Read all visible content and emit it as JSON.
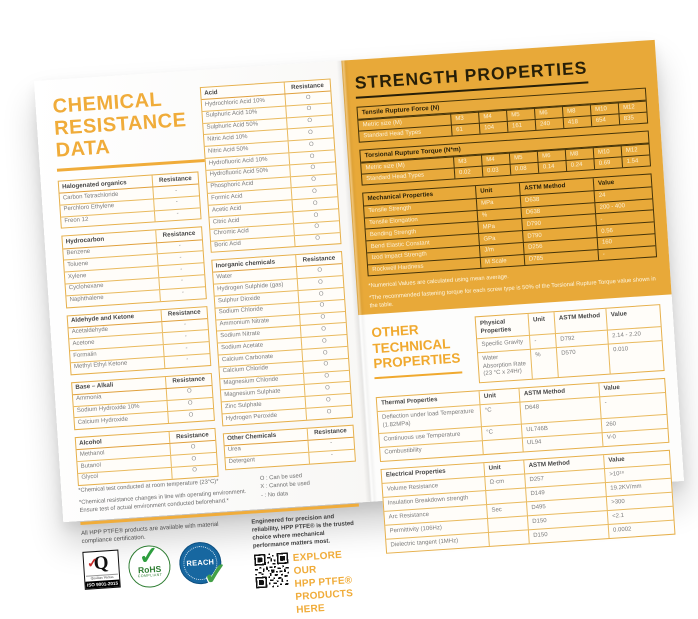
{
  "colors": {
    "gold": "#F0AC3A",
    "panel_gold": "#E8A939",
    "panel_border": "#453409",
    "table_border": "#E6B04C",
    "ink": "#271f08"
  },
  "left_page": {
    "title_lines": [
      "CHEMICAL",
      "RESISTANCE",
      "DATA"
    ],
    "resistance_header": "Resistance",
    "tables": {
      "halogenated": {
        "category": "Halogenated organics",
        "rows": [
          [
            "Carbon Tetrachloride",
            "-"
          ],
          [
            "Perchloro Ethylene",
            "-"
          ],
          [
            "Freon 12",
            "-"
          ]
        ]
      },
      "hydrocarbon": {
        "category": "Hydrocarbon",
        "rows": [
          [
            "Benzene",
            "-"
          ],
          [
            "Toluene",
            "-"
          ],
          [
            "Xylene",
            "-"
          ],
          [
            "Cyclohexane",
            "-"
          ],
          [
            "Naphthalene",
            "-"
          ]
        ]
      },
      "aldehyde": {
        "category": "Aldehyde and Ketone",
        "rows": [
          [
            "Acetaldehyde",
            "-"
          ],
          [
            "Acetone",
            "-"
          ],
          [
            "Formalin",
            "-"
          ],
          [
            "Methyl Ethyl Ketone",
            "-"
          ]
        ]
      },
      "base_alkali": {
        "category": "Base – Alkali",
        "rows": [
          [
            "Ammonia",
            "O"
          ],
          [
            "Sodium Hydroxide 10%",
            "O"
          ],
          [
            "Calcium Hydroxide",
            "O"
          ]
        ]
      },
      "alcohol": {
        "category": "Alcohol",
        "rows": [
          [
            "Methanol",
            "O"
          ],
          [
            "Butanol",
            "O"
          ],
          [
            "Glycol",
            "O"
          ]
        ]
      },
      "acid": {
        "category": "Acid",
        "rows": [
          [
            "Hydrochloric Acid 10%",
            "O"
          ],
          [
            "Sulphuric Acid 10%",
            "O"
          ],
          [
            "Sulphuric Acid 50%",
            "O"
          ],
          [
            "Nitric Acid 10%",
            "O"
          ],
          [
            "Nitric Acid 50%",
            "O"
          ],
          [
            "Hydrofluoric Acid 10%",
            "O"
          ],
          [
            "Hydrofluoric Acid 50%",
            "O"
          ],
          [
            "Phosphoric Acid",
            "O"
          ],
          [
            "Formic Acid",
            "O"
          ],
          [
            "Acetic Acid",
            "O"
          ],
          [
            "Citric Acid",
            "O"
          ],
          [
            "Chromic Acid",
            "O"
          ],
          [
            "Boric Acid",
            "O"
          ]
        ]
      },
      "inorganic": {
        "category": "Inorganic chemicals",
        "rows": [
          [
            "Water",
            "O"
          ],
          [
            "Hydrogen Sulphide (gas)",
            "O"
          ],
          [
            "Sulphur Dioxide",
            "O"
          ],
          [
            "Sodium Chloride",
            "O"
          ],
          [
            "Ammonium Nitrate",
            "O"
          ],
          [
            "Sodium Nitrate",
            "O"
          ],
          [
            "Sodium Acetate",
            "O"
          ],
          [
            "Calcium Carbonate",
            "O"
          ],
          [
            "Calcium Chloride",
            "O"
          ],
          [
            "Magnesium Chloride",
            "O"
          ],
          [
            "Magnesium Sulphate",
            "O"
          ],
          [
            "Zinc Sulphate",
            "O"
          ],
          [
            "Hydrogen Peroxide",
            "O"
          ]
        ]
      },
      "other_chem": {
        "category": "Other Chemicals",
        "rows": [
          [
            "Urea",
            "-"
          ],
          [
            "Detergent",
            "-"
          ]
        ]
      }
    },
    "legend": [
      "O : Can be used",
      "X : Cannot be used",
      "- : No data"
    ],
    "footnote1": "*Chemical test conducted at room temperature (23°C)*",
    "footnote2": "*Chemical resistance changes in line with operating environment. Ensure test of actual environment conducted beforehand.*",
    "compliance_text": "All HPP PTFE® products are available with material compliance certification.",
    "badges": {
      "iso": {
        "letter": "Q",
        "sub": "Qualitas Veritas",
        "band": "ISO 9001-2015"
      },
      "rohs": {
        "label": "RoHS",
        "sub": "COMPLIANT"
      },
      "reach": {
        "label": "REACH"
      }
    },
    "promo_text": "Engineered for precision and reliability, HPP PTFE® is the trusted choice where mechanical performance matters most.",
    "explore_lines": [
      "EXPLORE OUR",
      "HPP PTFE®",
      "PRODUCTS HERE"
    ]
  },
  "right_page": {
    "strength": {
      "title": "STRENGTH PROPERTIES",
      "tensile": {
        "title": "Tensile Rupture Force (N)",
        "metric_label": "Metric size (M)",
        "head_label": "Standard Head Types",
        "sizes": [
          "M3",
          "M4",
          "M5",
          "M6",
          "M8",
          "M10",
          "M12"
        ],
        "values": [
          "61",
          "104",
          "161",
          "240",
          "418",
          "654",
          "835"
        ]
      },
      "torsional": {
        "title": "Torsional Rupture Torque (N*m)",
        "metric_label": "Metric size (M)",
        "head_label": "Standard Head Types",
        "sizes": [
          "M3",
          "M4",
          "M5",
          "M6",
          "M8",
          "M10",
          "M12"
        ],
        "values": [
          "0.02",
          "0.03",
          "0.08",
          "0.14",
          "0.24",
          "0.69",
          "1.54"
        ]
      },
      "mechanical": {
        "headers": [
          "Mechanical Properties",
          "Unit",
          "ASTM Method",
          "Value"
        ],
        "rows": [
          [
            "Tensile Strength",
            "MPa",
            "D638",
            "24"
          ],
          [
            "Tensile Elongation",
            "%",
            "D638",
            "200 - 400"
          ],
          [
            "Bending Strength",
            "MPa",
            "D790",
            "-"
          ],
          [
            "Bend Elastic Constant",
            "GPa",
            "D790",
            "0.56"
          ],
          [
            "Izod Impact Strength",
            "J/m",
            "D256",
            "160"
          ],
          [
            "Rockwell Hardness",
            "M Scale",
            "D785",
            "-"
          ]
        ]
      },
      "footnote1": "*Numerical Values are calculated using mean average.",
      "footnote2": "*The recommended fastening torque for each screw type is 50% of the Torsional Rupture Torque value shown in the table."
    },
    "other": {
      "title_lines": [
        "OTHER",
        "TECHNICAL",
        "PROPERTIES"
      ],
      "physical": {
        "headers": [
          "Physical Properties",
          "Unit",
          "ASTM Method",
          "Value"
        ],
        "rows": [
          [
            "Specific Gravity",
            "-",
            "D792",
            "2.14 - 2.20"
          ],
          [
            "Water Absorption Rate (23 °C x 24Hr)",
            "%",
            "D570",
            "0.010"
          ]
        ]
      },
      "thermal": {
        "headers": [
          "Thermal Properties",
          "Unit",
          "ASTM Method",
          "Value"
        ],
        "rows": [
          [
            "Deflection under load Temperature (1.82MPa)",
            "°C",
            "D648",
            "-"
          ],
          [
            "Continuous use Temperature",
            "°C",
            "UL746B",
            "260"
          ],
          [
            "Combustibility",
            "",
            "UL94",
            "V-0"
          ]
        ]
      },
      "electrical": {
        "headers": [
          "Electrical Properties",
          "Unit",
          "ASTM Method",
          "Value"
        ],
        "rows": [
          [
            "Volume Resistance",
            "Ω·cm",
            "D257",
            ">10¹⁸"
          ],
          [
            "Insulation Breakdown strength",
            "",
            "D149",
            "19.2KV/mm"
          ],
          [
            "Arc Resistance",
            "Sec",
            "D495",
            ">300"
          ],
          [
            "Permittivity (106Hz)",
            "",
            "D150",
            "<2.1"
          ],
          [
            "Dielectric tangent (1MHz)",
            "",
            "D150",
            "0.0002"
          ]
        ]
      }
    }
  }
}
